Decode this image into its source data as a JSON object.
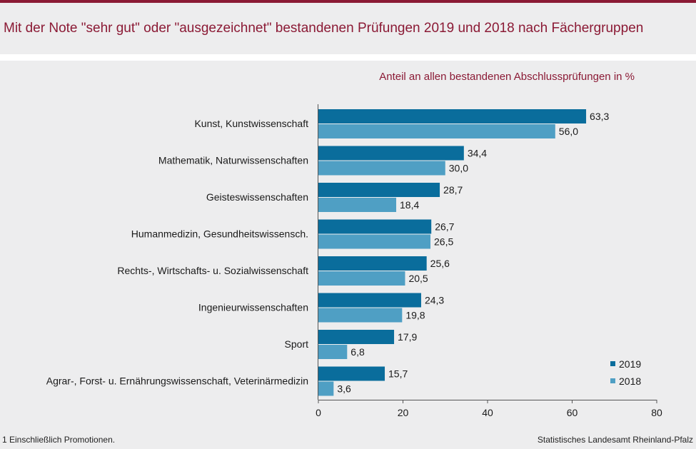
{
  "header": {
    "title": "Mit der Note \"sehr gut\" oder \"ausgezeichnet\" bestandenen Prüfungen 2019 und 2018 nach Fächergruppen",
    "subtitle": "Anteil an allen bestandenen Abschlussprüfungen  in %"
  },
  "footer": {
    "footnote": "1 Einschließlich Promotionen.",
    "source": "Statistisches Landesamt  Rheinland-Pfalz"
  },
  "chart_data": {
    "type": "bar",
    "orientation": "horizontal",
    "categories": [
      "Kunst, Kunstwissenschaft",
      "Mathematik, Naturwissenschaften",
      "Geisteswissenschaften",
      "Humanmedizin, Gesundheitswissensch.",
      "Rechts-, Wirtschafts- u. Sozialwissenschaft",
      "Ingenieurwissenschaften",
      "Sport",
      "Agrar-, Forst- u. Ernährungswissenschaft, Veterinärmedizin"
    ],
    "series": [
      {
        "name": "2019",
        "color": "#0a6d9c",
        "values": [
          63.3,
          34.4,
          28.7,
          26.7,
          25.6,
          24.3,
          17.9,
          15.7
        ],
        "labels": [
          "63,3",
          "34,4",
          "28,7",
          "26,7",
          "25,6",
          "24,3",
          "17,9",
          "15,7"
        ]
      },
      {
        "name": "2018",
        "color": "#4f9fc4",
        "values": [
          56.0,
          30.0,
          18.4,
          26.5,
          20.5,
          19.8,
          6.8,
          3.6
        ],
        "labels": [
          "56,0",
          "30,0",
          "18,4",
          "26,5",
          "20,5",
          "19,8",
          "6,8",
          "3,6"
        ]
      }
    ],
    "xlim": [
      0,
      80
    ],
    "xticks": [
      0,
      20,
      40,
      60,
      80
    ],
    "xtick_labels": [
      "0",
      "20",
      "40",
      "60",
      "80"
    ],
    "grid": false,
    "legend_position": "bottom-right"
  }
}
